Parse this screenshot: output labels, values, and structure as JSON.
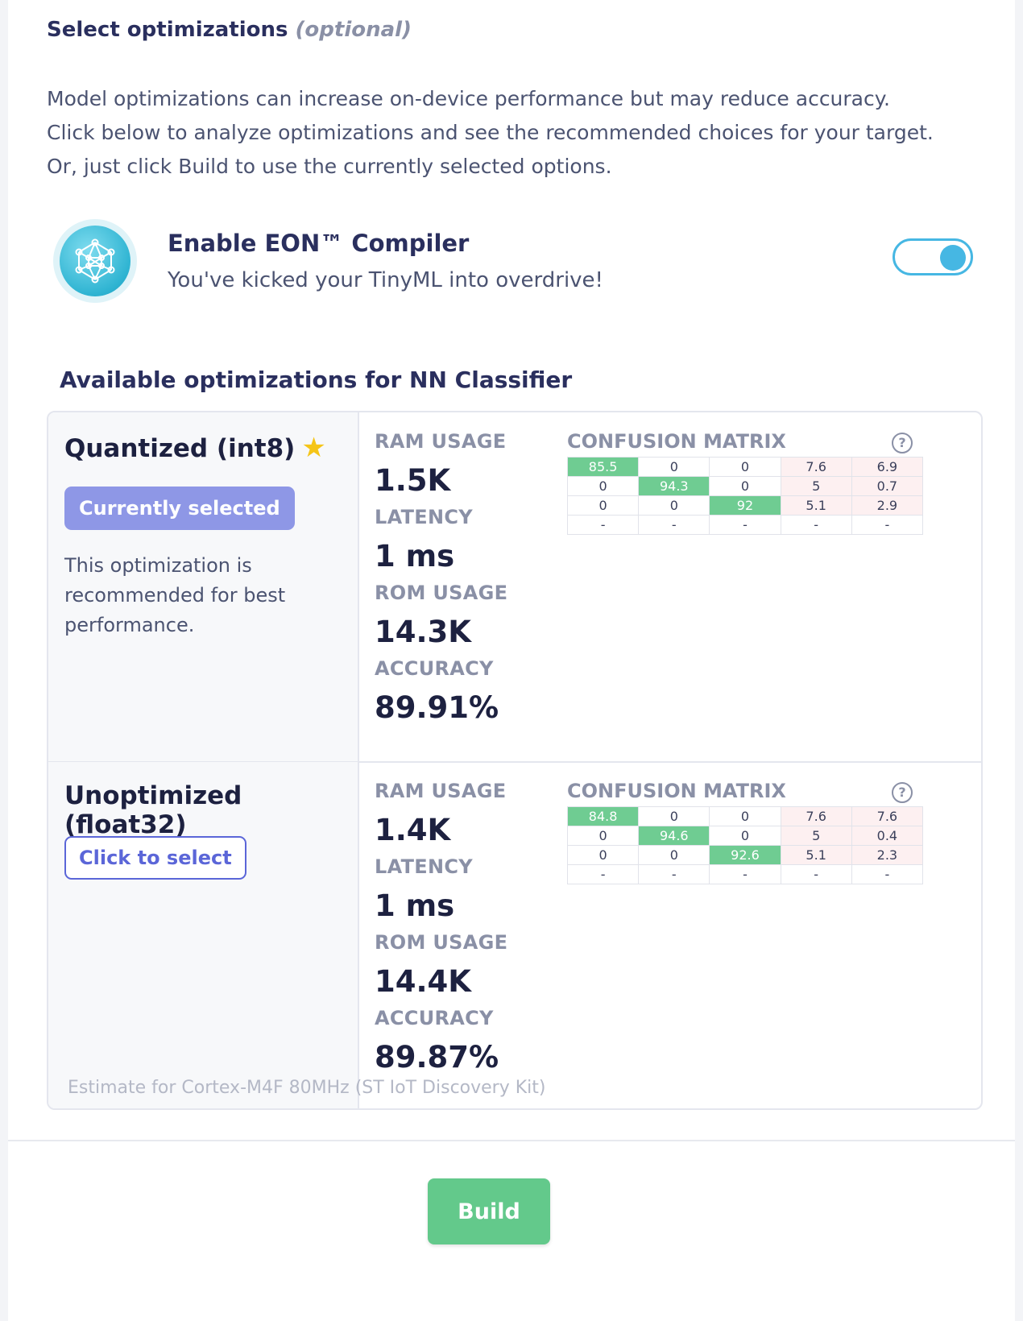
{
  "header": {
    "title": "Select optimizations",
    "optional": "(optional)",
    "intro_lines": [
      "Model optimizations can increase on-device performance but may reduce accuracy.",
      "Click below to analyze optimizations and see the recommended choices for your target.",
      "Or, just click Build to use the currently selected options."
    ]
  },
  "eon": {
    "title": "Enable EON™ Compiler",
    "subtitle": "You've kicked your TinyML into overdrive!",
    "toggle_on": true,
    "icon": "neural-network-icon"
  },
  "available_title": "Available optimizations for NN Classifier",
  "labels": {
    "ram": "RAM USAGE",
    "latency": "LATENCY",
    "rom": "ROM USAGE",
    "accuracy": "ACCURACY",
    "confusion": "CONFUSION MATRIX",
    "help": "?"
  },
  "optimizations": [
    {
      "name": "Quantized (int8)",
      "recommended_icon": "star-icon",
      "button": "Currently selected",
      "note": "This optimization is recommended for best performance.",
      "ram": "1.5K",
      "latency": "1 ms",
      "rom": "14.3K",
      "accuracy": "89.91%",
      "matrix": [
        [
          "85.5",
          "0",
          "0",
          "7.6",
          "6.9"
        ],
        [
          "0",
          "94.3",
          "0",
          "5",
          "0.7"
        ],
        [
          "0",
          "0",
          "92",
          "5.1",
          "2.9"
        ],
        [
          "-",
          "-",
          "-",
          "-",
          "-"
        ]
      ]
    },
    {
      "name": "Unoptimized (float32)",
      "button": "Click to select",
      "ram": "1.4K",
      "latency": "1 ms",
      "rom": "14.4K",
      "accuracy": "89.87%",
      "matrix": [
        [
          "84.8",
          "0",
          "0",
          "7.6",
          "7.6"
        ],
        [
          "0",
          "94.6",
          "0",
          "5",
          "0.4"
        ],
        [
          "0",
          "0",
          "92.6",
          "5.1",
          "2.3"
        ],
        [
          "-",
          "-",
          "-",
          "-",
          "-"
        ]
      ]
    }
  ],
  "footnote": "Estimate for Cortex-M4F 80MHz (ST IoT Discovery Kit)",
  "build_label": "Build",
  "colors": {
    "accent_green": "#63c98b",
    "matrix_diag": "#6fcc92",
    "matrix_err": "#fdf0f1",
    "toggle": "#46b7e3",
    "selected_button": "#8e97e6",
    "select_button_border": "#5b66d8"
  }
}
